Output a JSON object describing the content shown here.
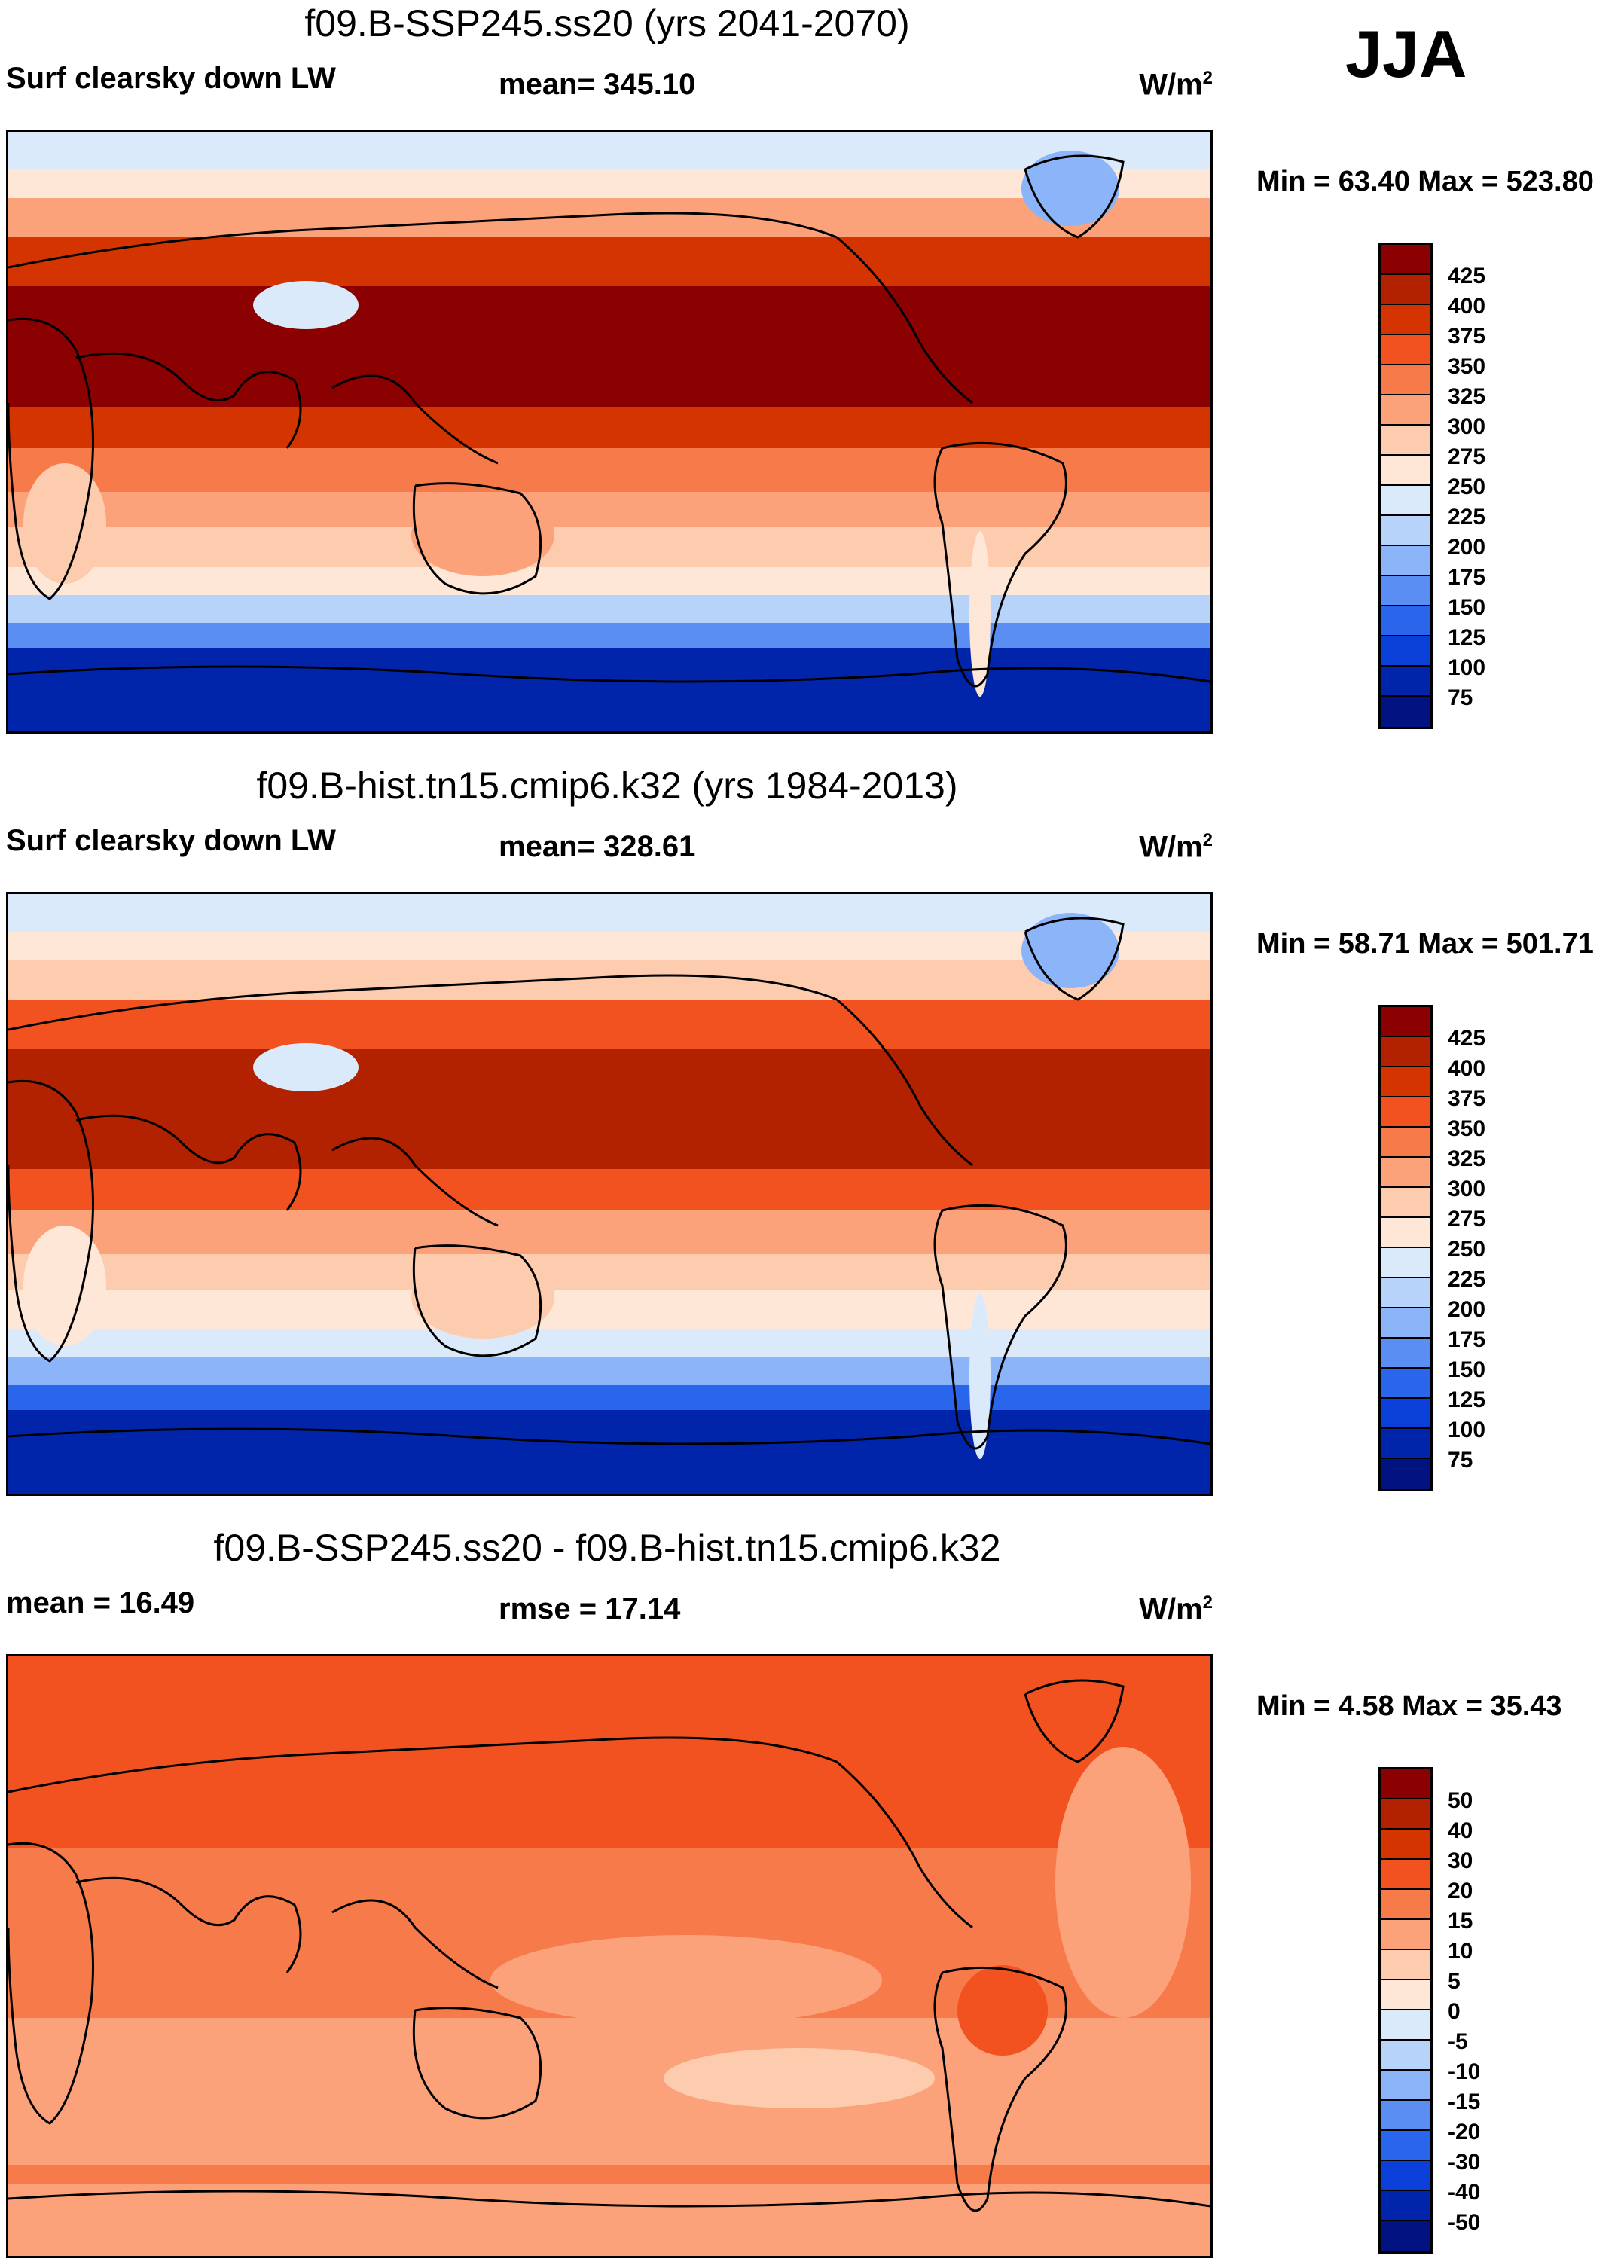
{
  "season": "JJA",
  "palette_abs": [
    "#8b0000",
    "#b22100",
    "#d43500",
    "#f1521f",
    "#f77a4a",
    "#fca27b",
    "#fdccae",
    "#fee7d7",
    "#dbeafb",
    "#b7d3fa",
    "#8cb4f8",
    "#5a8ef3",
    "#2a66ec",
    "#0a3fd8",
    "#0024aa",
    "#001380"
  ],
  "palette_diff": [
    "#8b0000",
    "#b22100",
    "#d43500",
    "#f1521f",
    "#f77a4a",
    "#fca27b",
    "#fdccae",
    "#fee7d7",
    "#dbeafb",
    "#b7d3fa",
    "#8cb4f8",
    "#5a8ef3",
    "#2a66ec",
    "#0a3fd8",
    "#0024aa",
    "#001380"
  ],
  "ticks_abs": [
    "425",
    "400",
    "375",
    "350",
    "325",
    "300",
    "275",
    "250",
    "225",
    "200",
    "175",
    "150",
    "125",
    "100",
    "75"
  ],
  "ticks_diff": [
    "50",
    "40",
    "30",
    "20",
    "15",
    "10",
    "5",
    "0",
    "-5",
    "-10",
    "-15",
    "-20",
    "-30",
    "-40",
    "-50"
  ],
  "panels": [
    {
      "title": "f09.B-SSP245.ss20 (yrs 2041-2070)",
      "left_label": "Surf clearsky down LW",
      "mid_label": "mean= 345.10",
      "units": "W/m",
      "units_sup": "2",
      "minmax": "Min =  63.40 Max = 523.80"
    },
    {
      "title": "f09.B-hist.tn15.cmip6.k32 (yrs 1984-2013)",
      "left_label": "Surf clearsky down LW",
      "mid_label": "mean= 328.61",
      "units": "W/m",
      "units_sup": "2",
      "minmax": "Min =  58.71 Max = 501.71"
    },
    {
      "title": "f09.B-SSP245.ss20 - f09.B-hist.tn15.cmip6.k32",
      "left_label": "mean =  16.49",
      "mid_label": "rmse =  17.14",
      "units": "W/m",
      "units_sup": "2",
      "minmax": "Min =   4.58 Max =  35.43"
    }
  ]
}
